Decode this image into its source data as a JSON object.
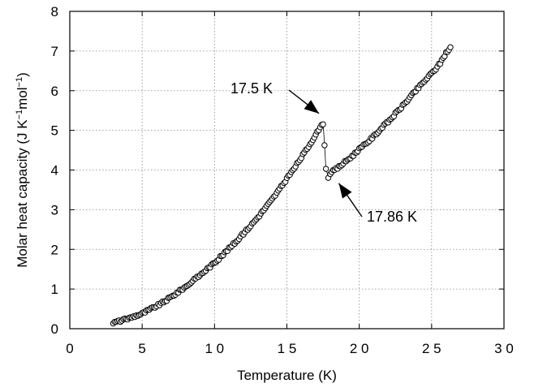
{
  "chart_data": {
    "type": "scatter",
    "title": "",
    "xlabel": "Temperature (K)",
    "ylabel_main": "Molar heat capacity (J K",
    "ylabel_sup1": "−1",
    "ylabel_mid": "mol",
    "ylabel_sup2": "−1",
    "ylabel_end": ")",
    "xlim": [
      0,
      30
    ],
    "ylim": [
      0,
      8
    ],
    "xticks": [
      0,
      5,
      10,
      15,
      20,
      25,
      30
    ],
    "yticks": [
      0,
      1,
      2,
      3,
      4,
      5,
      6,
      7,
      8
    ],
    "xtick_labels": [
      "0",
      "5",
      "1 0",
      "1 5",
      "2 0",
      "2 5",
      "3 0"
    ],
    "ytick_labels": [
      "0",
      "1",
      "2",
      "3",
      "4",
      "5",
      "6",
      "7",
      "8"
    ],
    "grid": true,
    "marker": "open-circle",
    "series": [
      {
        "low_temperature_branch": {
          "x": [
            3.0,
            3.5,
            4.0,
            4.5,
            5.0,
            5.5,
            6.0,
            6.5,
            7.0,
            7.5,
            8.0,
            8.5,
            9.0,
            9.5,
            10.0,
            10.5,
            11.0,
            11.5,
            12.0,
            12.5,
            13.0,
            13.5,
            14.0,
            14.5,
            15.0,
            15.5,
            16.0,
            16.5,
            17.0,
            17.3,
            17.5
          ],
          "y": [
            0.15,
            0.2,
            0.25,
            0.32,
            0.38,
            0.48,
            0.57,
            0.68,
            0.8,
            0.93,
            1.06,
            1.2,
            1.35,
            1.51,
            1.66,
            1.84,
            2.02,
            2.2,
            2.4,
            2.6,
            2.81,
            3.04,
            3.27,
            3.52,
            3.78,
            4.04,
            4.32,
            4.6,
            4.9,
            5.05,
            5.18
          ]
        },
        "transition_points": {
          "x": [
            17.6,
            17.7,
            17.86
          ],
          "y": [
            4.65,
            4.02,
            3.83
          ]
        },
        "high_temperature_branch": {
          "x": [
            18.0,
            18.5,
            19.0,
            19.5,
            20.0,
            20.5,
            21.0,
            21.5,
            22.0,
            22.5,
            23.0,
            23.5,
            24.0,
            24.5,
            25.0,
            25.3,
            25.6,
            26.0,
            26.3
          ],
          "y": [
            3.92,
            4.05,
            4.2,
            4.35,
            4.52,
            4.68,
            4.85,
            5.04,
            5.22,
            5.42,
            5.62,
            5.83,
            6.04,
            6.24,
            6.44,
            6.56,
            6.7,
            6.96,
            7.08
          ]
        }
      }
    ],
    "annotations": [
      {
        "text": "17.5 K",
        "target_x": 17.5,
        "target_y": 5.18
      },
      {
        "text": "17.86 K",
        "target_x": 17.86,
        "target_y": 3.83
      }
    ]
  }
}
